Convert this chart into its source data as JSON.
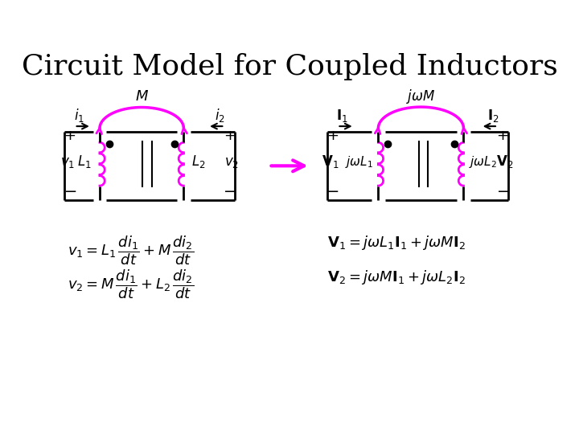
{
  "title": "Circuit Model for Coupled Inductors",
  "title_fontsize": 26,
  "bg_color": "#ffffff",
  "circuit_color": "#000000",
  "magenta": "#ff00ff",
  "arrow_color": "#ff00ff",
  "eq1_left1": "$v_1 = L_1\\,\\dfrac{di_1}{dt} + M\\,\\dfrac{di_2}{dt}$",
  "eq1_left2": "$v_2 = M\\,\\dfrac{di_1}{dt} + L_2\\,\\dfrac{di_2}{dt}$",
  "eq1_right1": "$\\mathbf{V}_1 = j\\omega L_1 \\mathbf{I}_1 + j\\omega M \\mathbf{I}_2$",
  "eq1_right2": "$\\mathbf{V}_2 = j\\omega M \\mathbf{I}_1 + j\\omega L_2 \\mathbf{I}_2$"
}
